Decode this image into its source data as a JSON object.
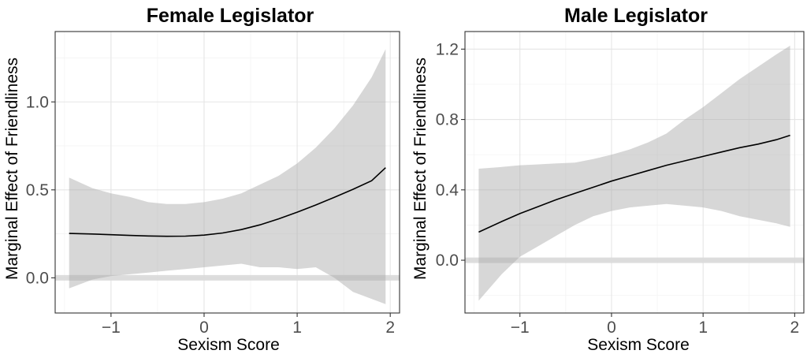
{
  "chart_data": [
    {
      "type": "line",
      "title": "Female Legislator",
      "xlabel": "Sexism Score",
      "ylabel": "Marginal Effect of Friendliness",
      "xlim": [
        -1.6,
        2.1
      ],
      "ylim": [
        -0.2,
        1.4
      ],
      "x_ticks": [
        -1,
        0,
        1,
        2
      ],
      "x_tick_labels": [
        "−1",
        "0",
        "1",
        "2"
      ],
      "y_ticks": [
        0.0,
        0.5,
        1.0
      ],
      "y_tick_labels": [
        "0.0",
        "0.5",
        "1.0"
      ],
      "reference_line_y": 0,
      "grid": true,
      "series": [
        {
          "kind": "line",
          "x": [
            -1.45,
            -1.2,
            -1.0,
            -0.8,
            -0.6,
            -0.4,
            -0.2,
            0.0,
            0.2,
            0.4,
            0.6,
            0.8,
            1.0,
            1.2,
            1.4,
            1.6,
            1.8,
            1.95
          ],
          "y": [
            0.252,
            0.249,
            0.245,
            0.241,
            0.238,
            0.236,
            0.237,
            0.243,
            0.255,
            0.274,
            0.301,
            0.335,
            0.373,
            0.414,
            0.458,
            0.503,
            0.552,
            0.626
          ]
        },
        {
          "kind": "confidence_band",
          "x": [
            -1.45,
            -1.2,
            -1.0,
            -0.8,
            -0.6,
            -0.4,
            -0.2,
            0.0,
            0.2,
            0.4,
            0.6,
            0.8,
            1.0,
            1.2,
            1.4,
            1.6,
            1.8,
            1.95
          ],
          "lower": [
            -0.06,
            -0.01,
            0.01,
            0.02,
            0.03,
            0.04,
            0.05,
            0.06,
            0.07,
            0.08,
            0.06,
            0.06,
            0.05,
            0.06,
            0.0,
            -0.08,
            -0.12,
            -0.15
          ],
          "upper": [
            0.57,
            0.51,
            0.48,
            0.46,
            0.43,
            0.42,
            0.42,
            0.43,
            0.45,
            0.48,
            0.53,
            0.58,
            0.65,
            0.74,
            0.85,
            0.98,
            1.14,
            1.3
          ]
        }
      ]
    },
    {
      "type": "line",
      "title": "Male Legislator",
      "xlabel": "Sexism Score",
      "ylabel": "Marginal Effect of Friendliness",
      "xlim": [
        -1.6,
        2.1
      ],
      "ylim": [
        -0.3,
        1.3
      ],
      "x_ticks": [
        -1,
        0,
        1,
        2
      ],
      "x_tick_labels": [
        "−1",
        "0",
        "1",
        "2"
      ],
      "y_ticks": [
        0.0,
        0.4,
        0.8,
        1.2
      ],
      "y_tick_labels": [
        "0.0",
        "0.4",
        "0.8",
        "1.2"
      ],
      "reference_line_y": 0,
      "grid": true,
      "series": [
        {
          "kind": "line",
          "x": [
            -1.45,
            -1.2,
            -1.0,
            -0.8,
            -0.6,
            -0.4,
            -0.2,
            0.0,
            0.2,
            0.4,
            0.6,
            0.8,
            1.0,
            1.2,
            1.4,
            1.6,
            1.8,
            1.95
          ],
          "y": [
            0.16,
            0.22,
            0.265,
            0.305,
            0.345,
            0.38,
            0.415,
            0.45,
            0.48,
            0.51,
            0.54,
            0.565,
            0.59,
            0.615,
            0.64,
            0.66,
            0.685,
            0.71
          ]
        },
        {
          "kind": "confidence_band",
          "x": [
            -1.45,
            -1.2,
            -1.0,
            -0.8,
            -0.6,
            -0.4,
            -0.2,
            0.0,
            0.2,
            0.4,
            0.6,
            0.8,
            1.0,
            1.2,
            1.4,
            1.6,
            1.8,
            1.95
          ],
          "lower": [
            -0.23,
            -0.08,
            0.02,
            0.08,
            0.14,
            0.2,
            0.25,
            0.28,
            0.3,
            0.31,
            0.32,
            0.31,
            0.3,
            0.28,
            0.25,
            0.23,
            0.21,
            0.19
          ],
          "upper": [
            0.52,
            0.53,
            0.54,
            0.545,
            0.55,
            0.555,
            0.575,
            0.6,
            0.63,
            0.67,
            0.72,
            0.8,
            0.87,
            0.95,
            1.03,
            1.1,
            1.17,
            1.22
          ]
        }
      ]
    }
  ]
}
